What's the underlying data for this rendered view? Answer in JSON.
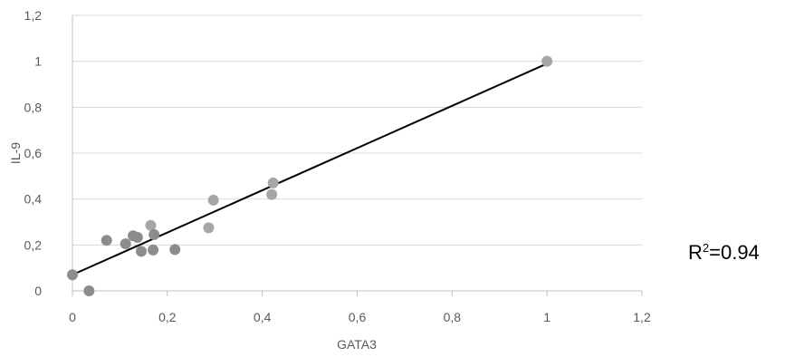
{
  "chart_data": {
    "type": "scatter",
    "title": "",
    "xlabel": "GATA3",
    "ylabel": "IL-9",
    "xlim": [
      0,
      1.2
    ],
    "ylim": [
      0,
      1.2
    ],
    "x_ticks": [
      "0",
      "0,2",
      "0,4",
      "0,6",
      "0,8",
      "1",
      "1,2"
    ],
    "y_ticks": [
      "0",
      "0,2",
      "0,4",
      "0,6",
      "0,8",
      "1",
      "1,2"
    ],
    "grid": "horizontal",
    "legend": "none",
    "points": [
      {
        "x": 0.0,
        "y": 0.07
      },
      {
        "x": 0.035,
        "y": 0.0
      },
      {
        "x": 0.072,
        "y": 0.22
      },
      {
        "x": 0.112,
        "y": 0.205
      },
      {
        "x": 0.128,
        "y": 0.24
      },
      {
        "x": 0.137,
        "y": 0.233
      },
      {
        "x": 0.145,
        "y": 0.172
      },
      {
        "x": 0.165,
        "y": 0.285
      },
      {
        "x": 0.17,
        "y": 0.178
      },
      {
        "x": 0.172,
        "y": 0.245
      },
      {
        "x": 0.216,
        "y": 0.18
      },
      {
        "x": 0.287,
        "y": 0.275
      },
      {
        "x": 0.297,
        "y": 0.395
      },
      {
        "x": 0.42,
        "y": 0.42
      },
      {
        "x": 0.423,
        "y": 0.47
      },
      {
        "x": 1.0,
        "y": 1.0
      }
    ],
    "trendline": {
      "x": [
        0.0,
        1.0
      ],
      "y": [
        0.07,
        0.99
      ]
    },
    "annotation": {
      "base": "R",
      "superscript": "2",
      "value": "=0.94"
    },
    "colors": {
      "point_dark": "#8c8c8c",
      "point_light": "#a6a6a6",
      "trendline": "#000000",
      "gridline": "#d9d9d9",
      "axis": "#bfbfbf",
      "text": "#595959"
    }
  }
}
